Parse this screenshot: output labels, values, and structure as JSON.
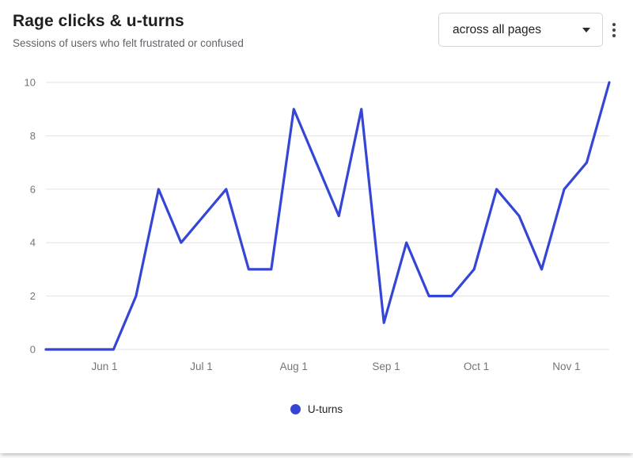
{
  "header": {
    "title": "Rage clicks & u-turns",
    "subtitle": "Sessions of users who felt frustrated or confused",
    "filter_dropdown": {
      "label": "across all pages",
      "icon": "chevron-down-icon"
    },
    "menu": {
      "icon": "kebab-menu-icon"
    }
  },
  "chart_data": {
    "type": "line",
    "title": "Rage clicks & u-turns",
    "subtitle": "Sessions of users who felt frustrated or confused",
    "series": [
      {
        "name": "U-turns",
        "color": "#3546d6",
        "values": [
          0,
          0,
          0,
          0,
          2,
          6,
          4,
          5,
          6,
          3,
          3,
          9,
          7,
          5,
          9,
          1,
          4,
          2,
          2,
          3,
          6,
          5,
          3,
          6,
          7,
          10
        ]
      }
    ],
    "x_ticks": [
      {
        "label": "Jun 1",
        "pos": 2.6
      },
      {
        "label": "Jul 1",
        "pos": 6.9
      },
      {
        "label": "Aug 1",
        "pos": 11.0
      },
      {
        "label": "Sep 1",
        "pos": 15.1
      },
      {
        "label": "Oct 1",
        "pos": 19.1
      },
      {
        "label": "Nov 1",
        "pos": 23.1
      }
    ],
    "y_ticks": [
      0,
      2,
      4,
      6,
      8,
      10
    ],
    "ylim": [
      0,
      10
    ],
    "grid": "horizontal",
    "grid_color": "#e2e2e2",
    "axis_label_color": "#757575",
    "legend_position": "bottom"
  },
  "legend": {
    "label": "U-turns"
  }
}
